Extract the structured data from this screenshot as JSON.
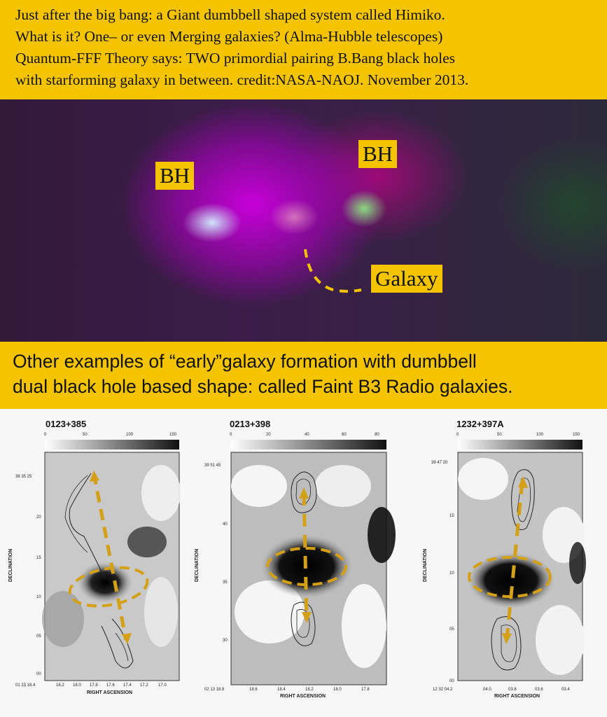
{
  "header": {
    "lines": [
      "Just after the big bang: a Giant dumbbell shaped system called Himiko.",
      "What is it?  One– or even Merging galaxies? (Alma-Hubble telescopes)",
      "Quantum-FFF Theory says: TWO primordial pairing B.Bang black holes",
      "with starforming galaxy in between.  credit:NASA-NAOJ. November 2013."
    ]
  },
  "image_labels": {
    "bh_left": "BH",
    "bh_right": "BH",
    "galaxy": "Galaxy"
  },
  "subheader": {
    "lines": [
      "Other examples of “early”galaxy formation with dumbbell",
      "dual black hole based shape: called Faint B3 Radio galaxies."
    ]
  },
  "panels": [
    {
      "title": "0123+385",
      "top_ticks": [
        "0",
        "50",
        "100",
        "150"
      ],
      "y_ticks": [
        "38 35 25",
        "20",
        "15",
        "10",
        "05",
        "00"
      ],
      "x_ticks": [
        "01 23 18.4",
        "18.2",
        "18.0",
        "17.8",
        "17.6",
        "17.4",
        "17.2",
        "17.0"
      ],
      "ylabel": "DECLINATION",
      "xlabel": "RIGHT ASCENSION"
    },
    {
      "title": "0213+398",
      "top_ticks": [
        "0",
        "20",
        "40",
        "60",
        "80"
      ],
      "y_ticks": [
        "39 51 45",
        "40",
        "35",
        "30"
      ],
      "x_ticks": [
        "02 13 18.8",
        "18.6",
        "18.4",
        "18.2",
        "18.0",
        "17.8"
      ],
      "ylabel": "DECLINATION",
      "xlabel": "RIGHT ASCENSION"
    },
    {
      "title": "1232+397A",
      "top_ticks": [
        "0",
        "50",
        "100",
        "150"
      ],
      "y_ticks": [
        "39 47 20",
        "15",
        "10",
        "05",
        "00"
      ],
      "x_ticks": [
        "12 32 04.2",
        "04.0",
        "03.8",
        "03.6",
        "03.4"
      ],
      "ylabel": "DECLINATION",
      "xlabel": "RIGHT ASCENSION"
    }
  ],
  "colors": {
    "banner": "#f4c400",
    "arrow": "#d4a017"
  }
}
